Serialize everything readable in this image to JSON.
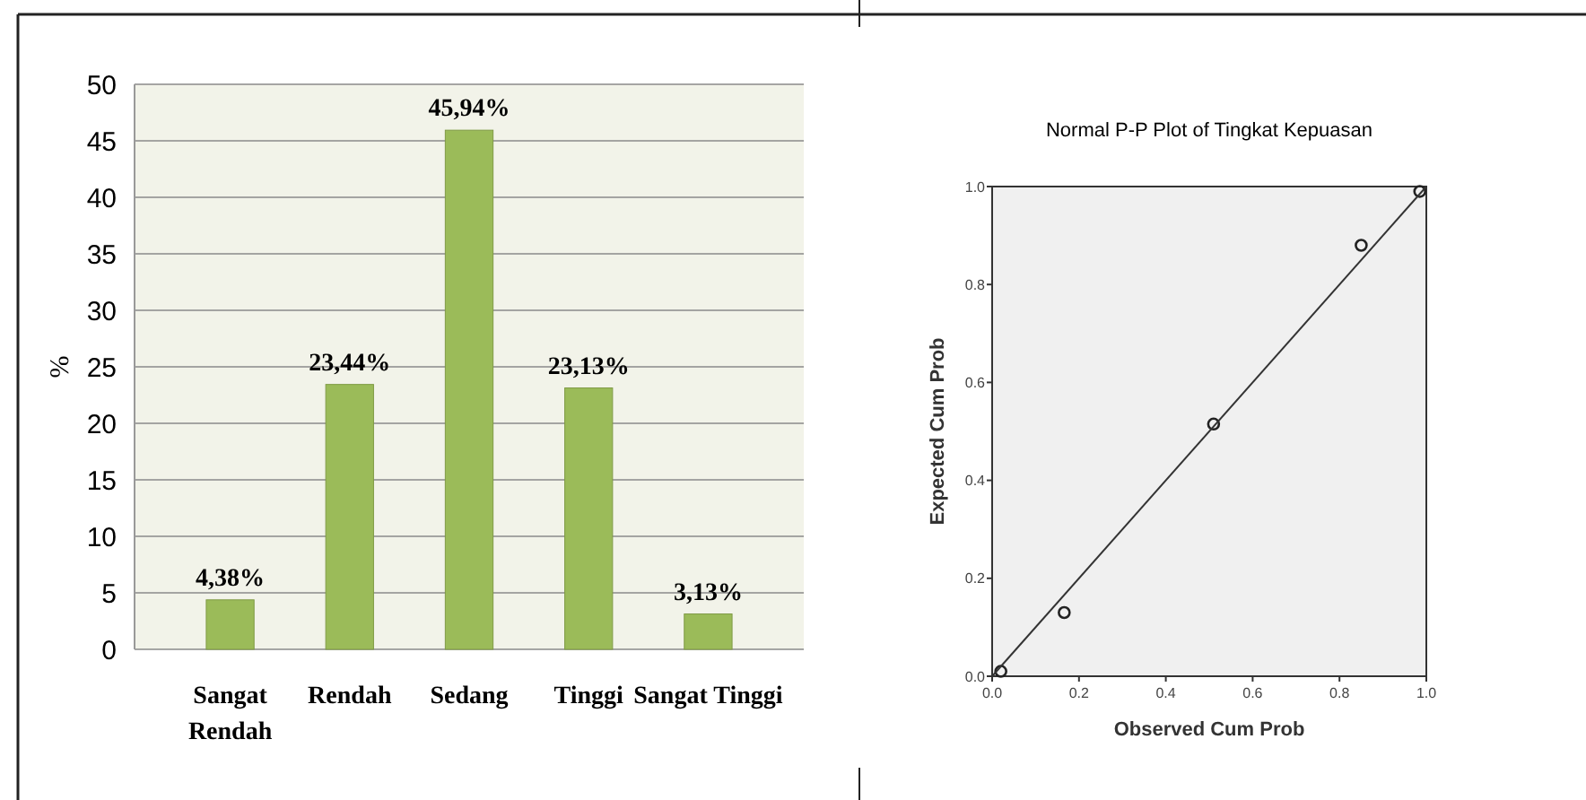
{
  "chart_data": [
    {
      "type": "bar",
      "ylabel": "%",
      "categories": [
        "Sangat Rendah",
        "Rendah",
        "Sedang",
        "Tinggi",
        "Sangat Tinggi"
      ],
      "values": [
        4.38,
        23.44,
        45.94,
        23.13,
        3.13
      ],
      "value_labels": [
        "4,38%",
        "23,44%",
        "45,94%",
        "23,13%",
        "3,13%"
      ],
      "color": "#9bbb59",
      "ylim": [
        0,
        50
      ],
      "yticks": [
        0,
        5,
        10,
        15,
        20,
        25,
        30,
        35,
        40,
        45,
        50
      ],
      "grid": "y"
    },
    {
      "type": "scatter",
      "title": "Normal P-P Plot of Tingkat Kepuasan",
      "xlabel": "Observed Cum Prob",
      "ylabel": "Expected Cum Prob",
      "series": [
        {
          "type": "scatter",
          "color": "#222222",
          "x": [
            0.02,
            0.166,
            0.51,
            0.85,
            0.985
          ],
          "values": [
            0.01,
            0.13,
            0.515,
            0.88,
            0.99
          ],
          "marker": "circle"
        },
        {
          "type": "line",
          "color": "#333333",
          "x": [
            0,
            1
          ],
          "values": [
            0,
            1
          ],
          "marker": "none",
          "line_style": "solid"
        }
      ],
      "xlim": [
        0,
        1
      ],
      "ylim": [
        0,
        1
      ],
      "xticks": [
        {
          "value": 0,
          "label": "0.0"
        },
        {
          "value": 0.2,
          "label": "0.2"
        },
        {
          "value": 0.4,
          "label": "0.4"
        },
        {
          "value": 0.6,
          "label": "0.6"
        },
        {
          "value": 0.8,
          "label": "0.8"
        },
        {
          "value": 1,
          "label": "1.0"
        }
      ],
      "yticks": [
        {
          "value": 0,
          "label": "0.0"
        },
        {
          "value": 0.2,
          "label": "0.2"
        },
        {
          "value": 0.4,
          "label": "0.4"
        },
        {
          "value": 0.6,
          "label": "0.6"
        },
        {
          "value": 0.8,
          "label": "0.8"
        },
        {
          "value": 1,
          "label": "1.0"
        }
      ],
      "grid": false
    }
  ]
}
